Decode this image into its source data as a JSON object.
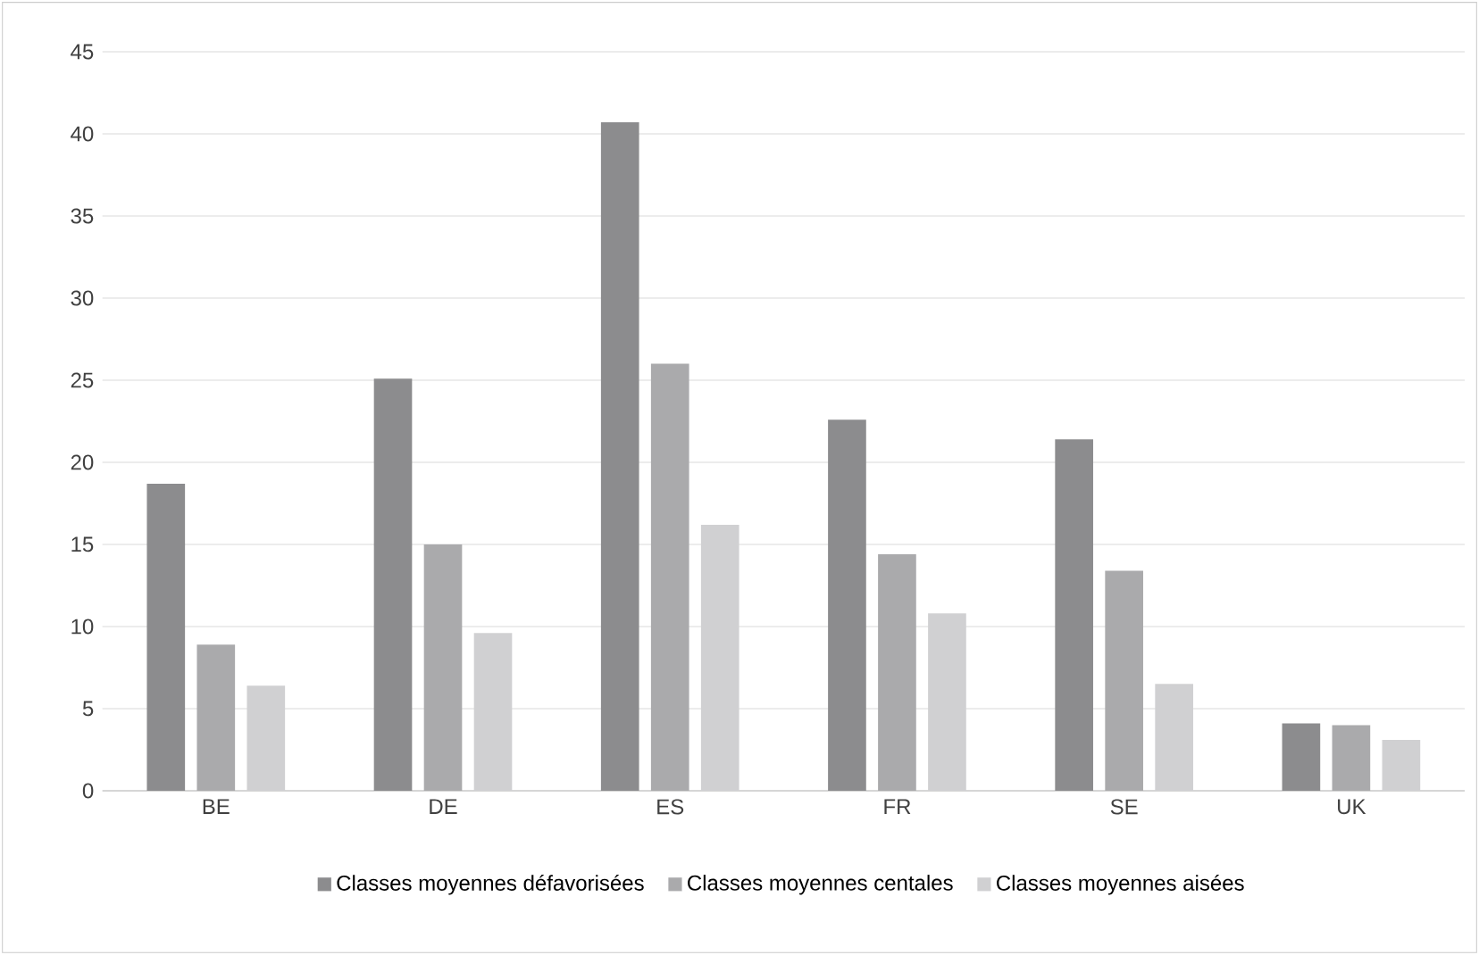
{
  "chart_data": {
    "type": "bar",
    "categories": [
      "BE",
      "DE",
      "ES",
      "FR",
      "SE",
      "UK"
    ],
    "series": [
      {
        "name": "Classes moyennes défavorisées",
        "color": "#8c8c8e",
        "values": [
          18.7,
          25.1,
          40.7,
          22.6,
          21.4,
          4.1
        ]
      },
      {
        "name": "Classes moyennes centales",
        "color": "#aaaaac",
        "values": [
          8.9,
          15.0,
          26.0,
          14.4,
          13.4,
          4.0
        ]
      },
      {
        "name": "Classes moyennes aisées",
        "color": "#d0d0d2",
        "values": [
          6.4,
          9.6,
          16.2,
          10.8,
          6.5,
          3.1
        ]
      }
    ],
    "ylim": [
      0,
      45
    ],
    "yticks": [
      0,
      5,
      10,
      15,
      20,
      25,
      30,
      35,
      40,
      45
    ],
    "grid": "y",
    "legend": "bottom"
  }
}
